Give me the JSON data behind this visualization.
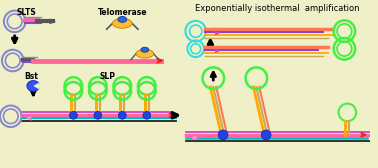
{
  "bg_color": "#f0f0c8",
  "title_text": "Exponentially isothermal  amplification",
  "slts_label": "SLTS",
  "telomerase_label": "Telomerase",
  "bst_label": "Bst",
  "slp_label": "SLP",
  "colors": {
    "blue_loop": "#8888cc",
    "green_loop": "#44ee44",
    "cyan_loop": "#33dddd",
    "pink_line": "#ff6699",
    "magenta_line": "#cc44cc",
    "purple_line": "#8844cc",
    "red_arrow": "#ff2200",
    "pink_arrow": "#ff88cc",
    "magenta_arrow": "#dd44bb",
    "dark": "#222222",
    "orange": "#ffaa00",
    "tan": "#ccaa55",
    "salmon": "#ff7755",
    "blue_dot": "#2244dd",
    "teal": "#00bbcc",
    "black": "#111111",
    "gray_dark": "#555555",
    "gray": "#888888",
    "brown": "#996633"
  }
}
